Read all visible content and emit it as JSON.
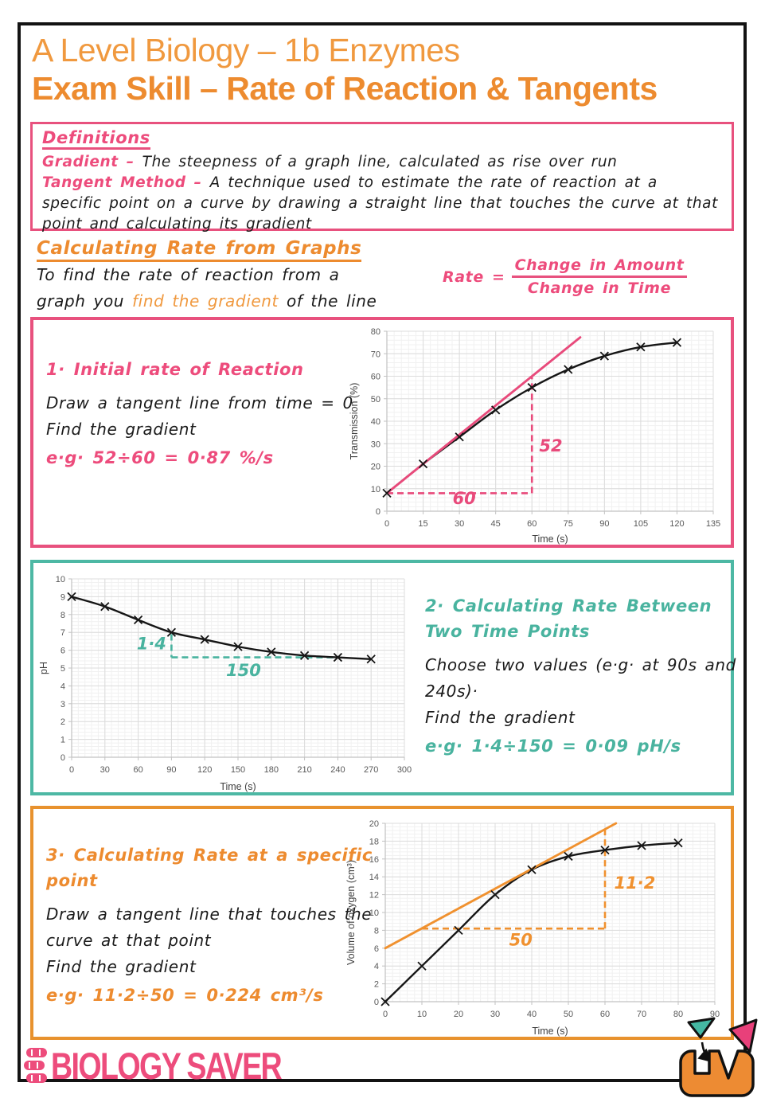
{
  "page": {
    "title_line1": "A Level Biology – 1b Enzymes",
    "title_line2": "Exam Skill – Rate of Reaction & Tangents"
  },
  "definitions": {
    "heading": "Definitions",
    "items": [
      {
        "term": "Gradient – ",
        "text": "The steepness of a graph line, calculated as rise over run"
      },
      {
        "term": "Tangent Method – ",
        "text": "A technique used to estimate the rate of reaction at a specific point on a curve by drawing a straight line that touches the curve at that point and calculating its gradient"
      }
    ]
  },
  "section": {
    "heading": "Calculating Rate from Graphs",
    "body_line1": "To find the rate of reaction from a",
    "body_line2_pre": "graph you ",
    "body_line2_highlight": "find the gradient",
    "body_line2_post": " of the line",
    "formula": {
      "lhs": "Rate =",
      "numerator": "Change in Amount",
      "denominator": "Change in Time"
    }
  },
  "boxes": [
    {
      "title": "1·  Initial rate of Reaction",
      "lines": [
        "Draw a tangent line from time = 0",
        "Find the gradient"
      ],
      "example": "e·g· 52÷60 = 0·87 %/s",
      "accent": "#E84A7B"
    },
    {
      "title": "2· Calculating Rate Between Two Time Points",
      "lines": [
        "Choose two values (e·g· at 90s and 240s)·",
        "Find the gradient"
      ],
      "example": "e·g· 1·4÷150 = 0·09 pH/s",
      "accent": "#49B39F"
    },
    {
      "title": "3· Calculating Rate at a specific point",
      "lines": [
        "Draw a tangent line that touches the curve at that point",
        "Find the gradient"
      ],
      "example": "e·g· 11·2÷50 = 0·224 cm³/s",
      "accent": "#ED8B2F"
    }
  ],
  "chart_data": [
    {
      "type": "line",
      "title": "",
      "xlabel": "Time (s)",
      "ylabel": "Transmission (%)",
      "xlim": [
        0,
        135
      ],
      "ylim": [
        0,
        80
      ],
      "xticks": [
        0,
        15,
        30,
        45,
        60,
        75,
        90,
        105,
        120,
        135
      ],
      "yticks": [
        0,
        10,
        20,
        30,
        40,
        50,
        60,
        70,
        80
      ],
      "grid": true,
      "legend": "none",
      "series": [
        {
          "name": "transmission",
          "marker": "x",
          "color": "#161616",
          "x": [
            0,
            15,
            30,
            45,
            60,
            75,
            90,
            105,
            120
          ],
          "y": [
            8,
            21,
            33,
            45,
            55,
            63,
            69,
            73,
            75
          ]
        }
      ],
      "tangent": {
        "x1": 0,
        "y1": 8,
        "x2": 80,
        "y2": 77.3
      },
      "dashed": [
        {
          "x1": 0,
          "y1": 8,
          "x2": 60,
          "y2": 8
        },
        {
          "x1": 60,
          "y1": 8,
          "x2": 60,
          "y2": 60
        }
      ],
      "annotations": [
        {
          "text": "60",
          "x": 32,
          "y": 3.2,
          "anchor": "middle"
        },
        {
          "text": "52",
          "x": 63,
          "y": 26.5,
          "anchor": "start"
        }
      ],
      "accent": "#E84A7B",
      "layout": {
        "ml": 50,
        "mr": 16,
        "mt": 10,
        "mb": 46
      }
    },
    {
      "type": "line",
      "title": "",
      "xlabel": "Time (s)",
      "ylabel": "pH",
      "xlim": [
        0,
        300
      ],
      "ylim": [
        0,
        10
      ],
      "xticks": [
        0,
        30,
        60,
        90,
        120,
        150,
        180,
        210,
        240,
        270,
        300
      ],
      "yticks": [
        0,
        1,
        2,
        3,
        4,
        5,
        6,
        7,
        8,
        9,
        10
      ],
      "grid": true,
      "legend": "none",
      "series": [
        {
          "name": "pH",
          "marker": "x",
          "color": "#161616",
          "x": [
            0,
            30,
            60,
            90,
            120,
            150,
            180,
            210,
            240,
            270
          ],
          "y": [
            9,
            8.45,
            7.7,
            7.0,
            6.6,
            6.2,
            5.9,
            5.7,
            5.6,
            5.5
          ]
        }
      ],
      "tangent": null,
      "dashed": [
        {
          "x1": 90,
          "y1": 6.9,
          "x2": 90,
          "y2": 5.6
        },
        {
          "x1": 90,
          "y1": 5.6,
          "x2": 240,
          "y2": 5.6
        }
      ],
      "annotations": [
        {
          "text": "1·4",
          "x": 72,
          "y": 6.05,
          "anchor": "middle"
        },
        {
          "text": "150",
          "x": 155,
          "y": 4.55,
          "anchor": "middle"
        }
      ],
      "accent": "#49B39F",
      "layout": {
        "ml": 44,
        "mr": 16,
        "mt": 12,
        "mb": 48
      }
    },
    {
      "type": "line",
      "title": "",
      "xlabel": "Time (s)",
      "ylabel": "Volume of oxygen (cm³)",
      "xlim": [
        0,
        90
      ],
      "ylim": [
        0,
        20
      ],
      "xticks": [
        0,
        10,
        20,
        30,
        40,
        50,
        60,
        70,
        80,
        90
      ],
      "yticks": [
        0,
        2,
        4,
        6,
        8,
        10,
        12,
        14,
        16,
        18,
        20
      ],
      "grid": true,
      "legend": "none",
      "series": [
        {
          "name": "oxygen-volume",
          "marker": "x",
          "color": "#161616",
          "x": [
            0,
            10,
            20,
            30,
            40,
            50,
            60,
            70,
            80
          ],
          "y": [
            0,
            4,
            8,
            12,
            14.8,
            16.3,
            17,
            17.5,
            17.8
          ]
        }
      ],
      "tangent": {
        "x1": 0,
        "y1": 6,
        "x2": 63,
        "y2": 20
      },
      "dashed": [
        {
          "x1": 10,
          "y1": 8.2,
          "x2": 60,
          "y2": 8.2
        },
        {
          "x1": 60,
          "y1": 8.2,
          "x2": 60,
          "y2": 19.3
        }
      ],
      "annotations": [
        {
          "text": "50",
          "x": 37,
          "y": 6.3,
          "anchor": "middle"
        },
        {
          "text": "11·2",
          "x": 62.5,
          "y": 12.7,
          "anchor": "start"
        }
      ],
      "accent": "#F0912F",
      "layout": {
        "ml": 52,
        "mr": 16,
        "mt": 12,
        "mb": 48
      }
    }
  ],
  "footer": {
    "logo_text": "BIOLOGY SAVER"
  }
}
